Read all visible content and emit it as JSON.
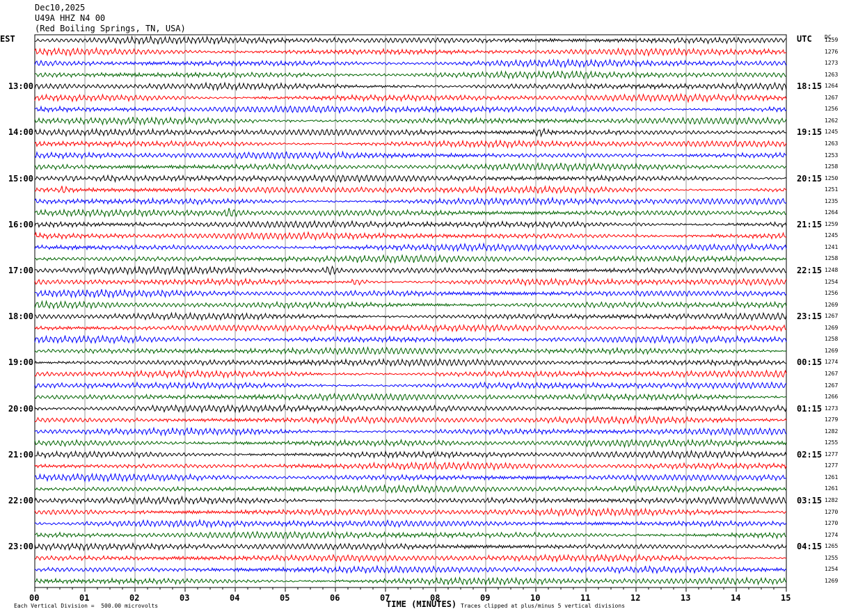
{
  "header": {
    "date": "Dec10,2025",
    "station": "U49A HHZ N4 00",
    "location": "(Red Boiling Springs, TN, USA)"
  },
  "left_tz": "EST",
  "right_tz": "UTC",
  "dc_header": "DC",
  "chart_data": {
    "type": "line",
    "xlabel": "TIME (MINUTES)",
    "xlim": [
      0,
      15
    ],
    "x_ticks": [
      "00",
      "01",
      "02",
      "03",
      "04",
      "05",
      "06",
      "07",
      "08",
      "09",
      "10",
      "11",
      "12",
      "13",
      "14",
      "15"
    ],
    "trace_colors": [
      "#000000",
      "#ff0000",
      "#0000ff",
      "#006400"
    ],
    "trace_count": 48,
    "left_hour_labels": [
      "13:00",
      "14:00",
      "15:00",
      "16:00",
      "17:00",
      "18:00",
      "19:00",
      "20:00",
      "21:00",
      "22:00",
      "23:00"
    ],
    "right_hour_labels": [
      "18:15",
      "19:15",
      "20:15",
      "21:15",
      "22:15",
      "23:15",
      "00:15",
      "01:15",
      "02:15",
      "03:15",
      "04:15"
    ],
    "dc_offsets": [
      "1259",
      "1276",
      "1273",
      "1263",
      "1264",
      "1267",
      "1256",
      "1262",
      "1245",
      "1263",
      "1253",
      "1258",
      "1250",
      "1251",
      "1235",
      "1264",
      "1259",
      "1245",
      "1241",
      "1258",
      "1248",
      "1254",
      "1256",
      "1269",
      "1267",
      "1269",
      "1258",
      "1269",
      "1274",
      "1267",
      "1267",
      "1266",
      "1273",
      "1279",
      "1282",
      "1255",
      "1277",
      "1277",
      "1261",
      "1261",
      "1282",
      "1270",
      "1270",
      "1274",
      "1265",
      "1255",
      "1254",
      "1269"
    ],
    "events": [
      {
        "trace": 8,
        "minute": 10.0
      },
      {
        "trace": 12,
        "minute": 0.7
      },
      {
        "trace": 13,
        "minute": 0.5
      },
      {
        "trace": 15,
        "minute": 3.8
      },
      {
        "trace": 20,
        "minute": 5.8
      },
      {
        "trace": 21,
        "minute": 6.3
      }
    ]
  },
  "footer": {
    "scale": "Each Vertical Division =  500.00 microvolts",
    "clip": "Traces clipped at plus/minus 5 vertical divisions"
  }
}
